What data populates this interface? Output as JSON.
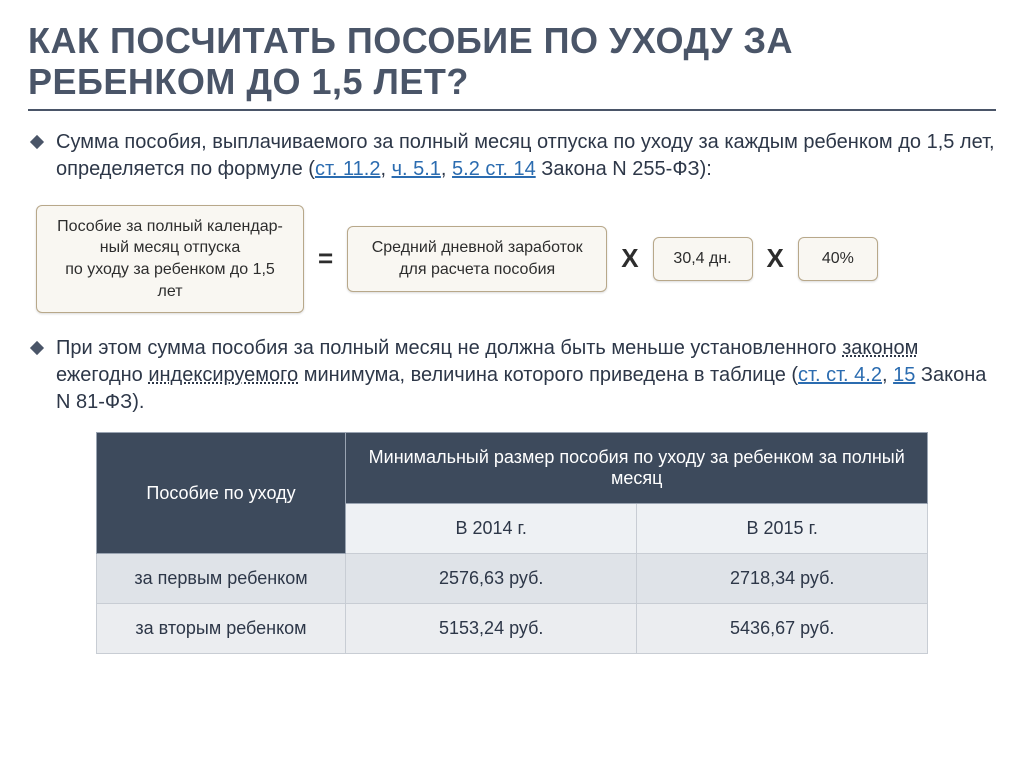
{
  "title": "КАК ПОСЧИТАТЬ ПОСОБИЕ ПО УХОДУ ЗА РЕБЕНКОМ ДО 1,5 ЛЕТ?",
  "para1": {
    "prefix": " Сумма пособия, выплачиваемого за полный месяц отпуска по уходу за каждым ребенком до 1,5 лет, определяется по формуле (",
    "link1": "ст. 11.2",
    "sep1": ", ",
    "link2": "ч. 5.1",
    "sep2": ", ",
    "link3": "5.2 ст. 14",
    "suffix": " Закона N 255-ФЗ):"
  },
  "formula": {
    "box1": "Пособие за полный календар-\nный месяц отпуска\nпо уходу за ребенком до 1,5 лет",
    "eq": "=",
    "box2": "Средний дневной заработок\nдля расчета пособия",
    "times": "Х",
    "box3": "30,4 дн.",
    "box4": "40%"
  },
  "para2": {
    "prefix": "При этом сумма пособия за полный месяц не должна быть меньше установленного ",
    "dash1": "законом",
    "mid1": " ежегодно ",
    "dash2": "индексируемого",
    "mid2": " минимума, величина которого приведена в таблице (",
    "link1": "ст. ст. 4.2",
    "sep": ", ",
    "link2": "15",
    "suffix": " Закона N 81-ФЗ)."
  },
  "table": {
    "head_left": "Пособие по уходу",
    "head_right": "Минимальный размер пособия по уходу за ребенком за полный месяц",
    "year1": "В 2014 г.",
    "year2": "В 2015 г.",
    "rows": [
      {
        "label": "за первым ребенком",
        "y1": "2576,63 руб.",
        "y2": "2718,34 руб."
      },
      {
        "label": "за вторым ребенком",
        "y1": "5153,24 руб.",
        "y2": "5436,67 руб."
      }
    ]
  },
  "colors": {
    "heading": "#4a5568",
    "link": "#2b6cb0",
    "table_header_bg": "#3d4a5c",
    "formula_box_bg": "#f9f7f2",
    "formula_box_border": "#b8a88a"
  }
}
